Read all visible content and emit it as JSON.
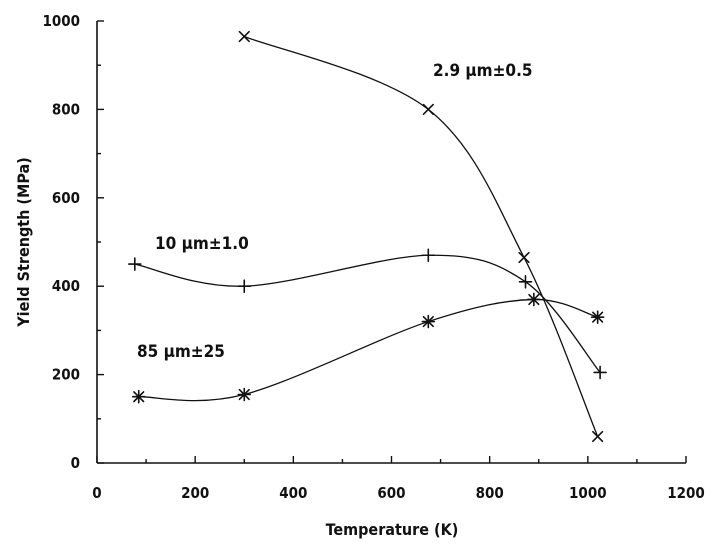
{
  "chart_data": {
    "type": "line",
    "xlabel": "Temperature (K)",
    "ylabel": "Yield Strength (MPa)",
    "xlim": [
      0,
      1200
    ],
    "ylim": [
      0,
      1000
    ],
    "xticks": [
      0,
      200,
      400,
      600,
      800,
      1000,
      1200
    ],
    "yticks": [
      0,
      200,
      400,
      600,
      800,
      1000
    ],
    "grid": false,
    "series": [
      {
        "name": "2.9 μm±0.5",
        "marker": "x",
        "x": [
          300,
          675,
          870,
          1020
        ],
        "y": [
          965,
          800,
          465,
          60
        ]
      },
      {
        "name": "10 μm±1.0",
        "marker": "+",
        "x": [
          77,
          300,
          675,
          873,
          1025
        ],
        "y": [
          450,
          400,
          470,
          410,
          205
        ]
      },
      {
        "name": "85 μm±25",
        "marker": "*",
        "x": [
          85,
          300,
          675,
          890,
          1020
        ],
        "y": [
          150,
          155,
          320,
          370,
          330
        ]
      }
    ]
  }
}
